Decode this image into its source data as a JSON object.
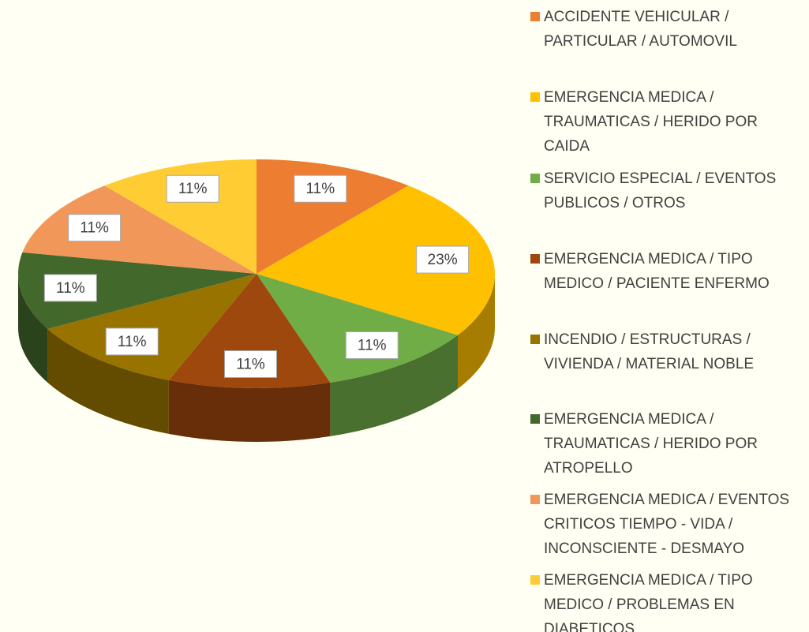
{
  "chart_data": {
    "type": "pie",
    "categories": [
      "ACCIDENTE VEHICULAR / PARTICULAR / AUTOMOVIL",
      "EMERGENCIA MEDICA / TRAUMATICAS / HERIDO POR CAIDA",
      "SERVICIO ESPECIAL / EVENTOS PUBLICOS / OTROS",
      "EMERGENCIA MEDICA / TIPO MEDICO / PACIENTE ENFERMO",
      "INCENDIO / ESTRUCTURAS / VIVIENDA / MATERIAL NOBLE",
      "EMERGENCIA MEDICA / TRAUMATICAS / HERIDO POR ATROPELLO",
      "EMERGENCIA MEDICA / EVENTOS CRITICOS TIEMPO - VIDA / INCONSCIENTE - DESMAYO",
      "EMERGENCIA MEDICA / TIPO MEDICO / PROBLEMAS EN DIABETICOS"
    ],
    "values": [
      11,
      23,
      11,
      11,
      11,
      11,
      11,
      11
    ],
    "value_labels": [
      "11%",
      "23%",
      "11%",
      "11%",
      "11%",
      "11%",
      "11%",
      "11%"
    ],
    "colors": [
      "#ed7d31",
      "#ffc000",
      "#70ad47",
      "#9e480e",
      "#997300",
      "#43682b",
      "#f1975a",
      "#ffcd33"
    ],
    "legend": "right"
  }
}
